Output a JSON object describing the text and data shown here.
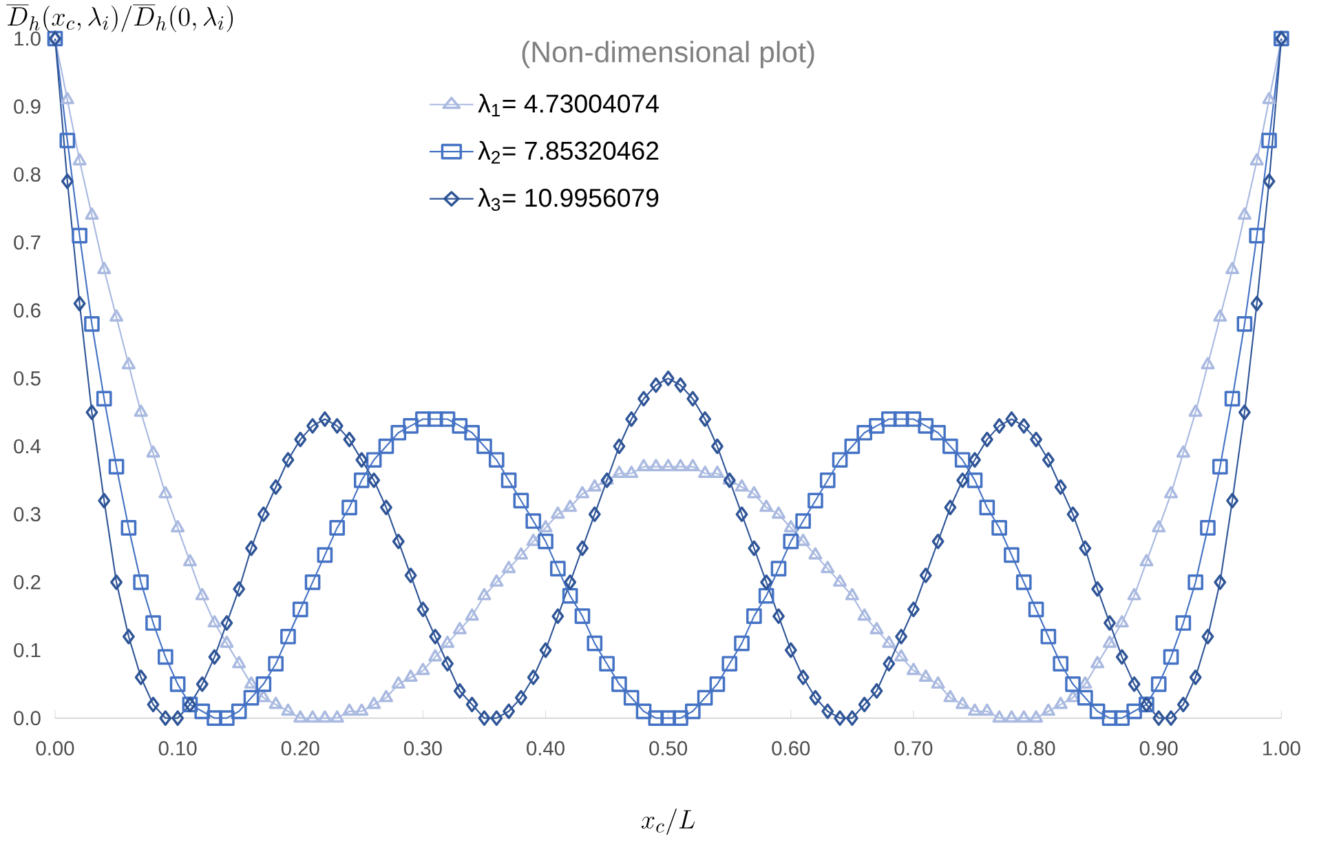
{
  "chart_data": {
    "type": "line",
    "title": "(Non-dimensional plot)",
    "xlabel": "x_c/L",
    "ylabel": "\\overline{D}_h(x_c,\\lambda_i)/\\overline{D}_h(0,\\lambda_i)",
    "x": [
      0,
      0.01,
      0.02,
      0.03,
      0.04,
      0.05,
      0.06,
      0.07,
      0.08,
      0.09,
      0.1,
      0.11,
      0.12,
      0.13,
      0.14,
      0.15,
      0.16,
      0.17,
      0.18,
      0.19,
      0.2,
      0.21,
      0.22,
      0.23,
      0.24,
      0.25,
      0.26,
      0.27,
      0.28,
      0.29,
      0.3,
      0.31,
      0.32,
      0.33,
      0.34,
      0.35,
      0.36,
      0.37,
      0.38,
      0.39,
      0.4,
      0.41,
      0.42,
      0.43,
      0.44,
      0.45,
      0.46,
      0.47,
      0.48,
      0.49,
      0.5,
      0.51,
      0.52,
      0.53,
      0.54,
      0.55,
      0.56,
      0.57,
      0.58,
      0.59,
      0.6,
      0.61,
      0.62,
      0.63,
      0.64,
      0.65,
      0.66,
      0.67,
      0.68,
      0.69,
      0.7,
      0.71,
      0.72,
      0.73,
      0.74,
      0.75,
      0.76,
      0.77,
      0.78,
      0.79,
      0.8,
      0.81,
      0.82,
      0.83,
      0.84,
      0.85,
      0.86,
      0.87,
      0.88,
      0.89,
      0.9,
      0.91,
      0.92,
      0.93,
      0.94,
      0.95,
      0.96,
      0.97,
      0.98,
      0.99,
      1
    ],
    "series": [
      {
        "name": "λ$_{1}$= 4.73004074",
        "color": "#a9b9e0",
        "marker": "triangle",
        "values": [
          1,
          0.91,
          0.82,
          0.74,
          0.66,
          0.59,
          0.52,
          0.45,
          0.39,
          0.33,
          0.28,
          0.23,
          0.18,
          0.14,
          0.11,
          0.08,
          0.05,
          0.03,
          0.02,
          0.01,
          0,
          0,
          0,
          0,
          0.01,
          0.01,
          0.02,
          0.03,
          0.05,
          0.06,
          0.07,
          0.09,
          0.11,
          0.13,
          0.15,
          0.18,
          0.2,
          0.22,
          0.24,
          0.26,
          0.28,
          0.3,
          0.31,
          0.33,
          0.34,
          0.35,
          0.36,
          0.36,
          0.37,
          0.37,
          0.37,
          0.37,
          0.37,
          0.36,
          0.36,
          0.35,
          0.34,
          0.33,
          0.31,
          0.3,
          0.28,
          0.26,
          0.24,
          0.22,
          0.2,
          0.18,
          0.15,
          0.13,
          0.11,
          0.09,
          0.07,
          0.06,
          0.05,
          0.03,
          0.02,
          0.01,
          0.01,
          0,
          0,
          0,
          0,
          0.01,
          0.02,
          0.03,
          0.05,
          0.08,
          0.11,
          0.14,
          0.18,
          0.23,
          0.28,
          0.33,
          0.39,
          0.45,
          0.52,
          0.59,
          0.66,
          0.74,
          0.82,
          0.91,
          1
        ]
      },
      {
        "name": "λ$_{2}$= 7.85320462",
        "color": "#4472c4",
        "marker": "square",
        "values": [
          1,
          0.85,
          0.71,
          0.58,
          0.47,
          0.37,
          0.28,
          0.2,
          0.14,
          0.09,
          0.05,
          0.02,
          0.01,
          0,
          0,
          0.01,
          0.03,
          0.05,
          0.08,
          0.12,
          0.16,
          0.2,
          0.24,
          0.28,
          0.31,
          0.35,
          0.38,
          0.4,
          0.42,
          0.43,
          0.44,
          0.44,
          0.44,
          0.43,
          0.42,
          0.4,
          0.38,
          0.35,
          0.32,
          0.29,
          0.26,
          0.22,
          0.18,
          0.15,
          0.11,
          0.08,
          0.05,
          0.03,
          0.01,
          0,
          0,
          0,
          0.01,
          0.03,
          0.05,
          0.08,
          0.11,
          0.15,
          0.18,
          0.22,
          0.26,
          0.29,
          0.32,
          0.35,
          0.38,
          0.4,
          0.42,
          0.43,
          0.44,
          0.44,
          0.44,
          0.43,
          0.42,
          0.4,
          0.38,
          0.35,
          0.31,
          0.28,
          0.24,
          0.2,
          0.16,
          0.12,
          0.08,
          0.05,
          0.03,
          0.01,
          0,
          0,
          0.01,
          0.02,
          0.05,
          0.09,
          0.14,
          0.2,
          0.28,
          0.37,
          0.47,
          0.58,
          0.71,
          0.85,
          1
        ]
      },
      {
        "name": "λ$_{3}$= 10.9956079",
        "color": "#2f5597",
        "marker": "diamond",
        "values": [
          1,
          0.79,
          0.61,
          0.45,
          0.32,
          0.2,
          0.12,
          0.06,
          0.02,
          0,
          0,
          0.02,
          0.05,
          0.09,
          0.14,
          0.19,
          0.25,
          0.3,
          0.34,
          0.38,
          0.41,
          0.43,
          0.44,
          0.43,
          0.41,
          0.38,
          0.35,
          0.31,
          0.26,
          0.21,
          0.16,
          0.12,
          0.08,
          0.04,
          0.02,
          0,
          0,
          0.01,
          0.03,
          0.06,
          0.1,
          0.15,
          0.2,
          0.25,
          0.3,
          0.35,
          0.4,
          0.44,
          0.47,
          0.49,
          0.5,
          0.49,
          0.47,
          0.44,
          0.4,
          0.35,
          0.3,
          0.25,
          0.2,
          0.15,
          0.1,
          0.06,
          0.03,
          0.01,
          0,
          0,
          0.02,
          0.04,
          0.08,
          0.12,
          0.16,
          0.21,
          0.26,
          0.31,
          0.35,
          0.38,
          0.41,
          0.43,
          0.44,
          0.43,
          0.41,
          0.38,
          0.34,
          0.3,
          0.25,
          0.19,
          0.14,
          0.09,
          0.05,
          0.02,
          0,
          0,
          0.02,
          0.06,
          0.12,
          0.2,
          0.32,
          0.45,
          0.61,
          0.79,
          1
        ]
      }
    ],
    "xlim": [
      0,
      1
    ],
    "ylim": [
      0,
      1
    ],
    "xticks": [
      {
        "value": 0,
        "label": "0.00"
      },
      {
        "value": 0.1,
        "label": "0.10"
      },
      {
        "value": 0.2,
        "label": "0.20"
      },
      {
        "value": 0.3,
        "label": "0.30"
      },
      {
        "value": 0.4,
        "label": "0.40"
      },
      {
        "value": 0.5,
        "label": "0.50"
      },
      {
        "value": 0.6,
        "label": "0.60"
      },
      {
        "value": 0.7,
        "label": "0.70"
      },
      {
        "value": 0.8,
        "label": "0.80"
      },
      {
        "value": 0.9,
        "label": "0.90"
      },
      {
        "value": 1,
        "label": "1.00"
      }
    ],
    "yticks": [
      {
        "value": 0,
        "label": "0.0"
      },
      0.1,
      0.2,
      0.3,
      0.4,
      0.5,
      0.6,
      0.7,
      0.8,
      0.9,
      {
        "value": 1,
        "label": "1.0"
      }
    ],
    "legend": "top",
    "line_style": "solid"
  }
}
